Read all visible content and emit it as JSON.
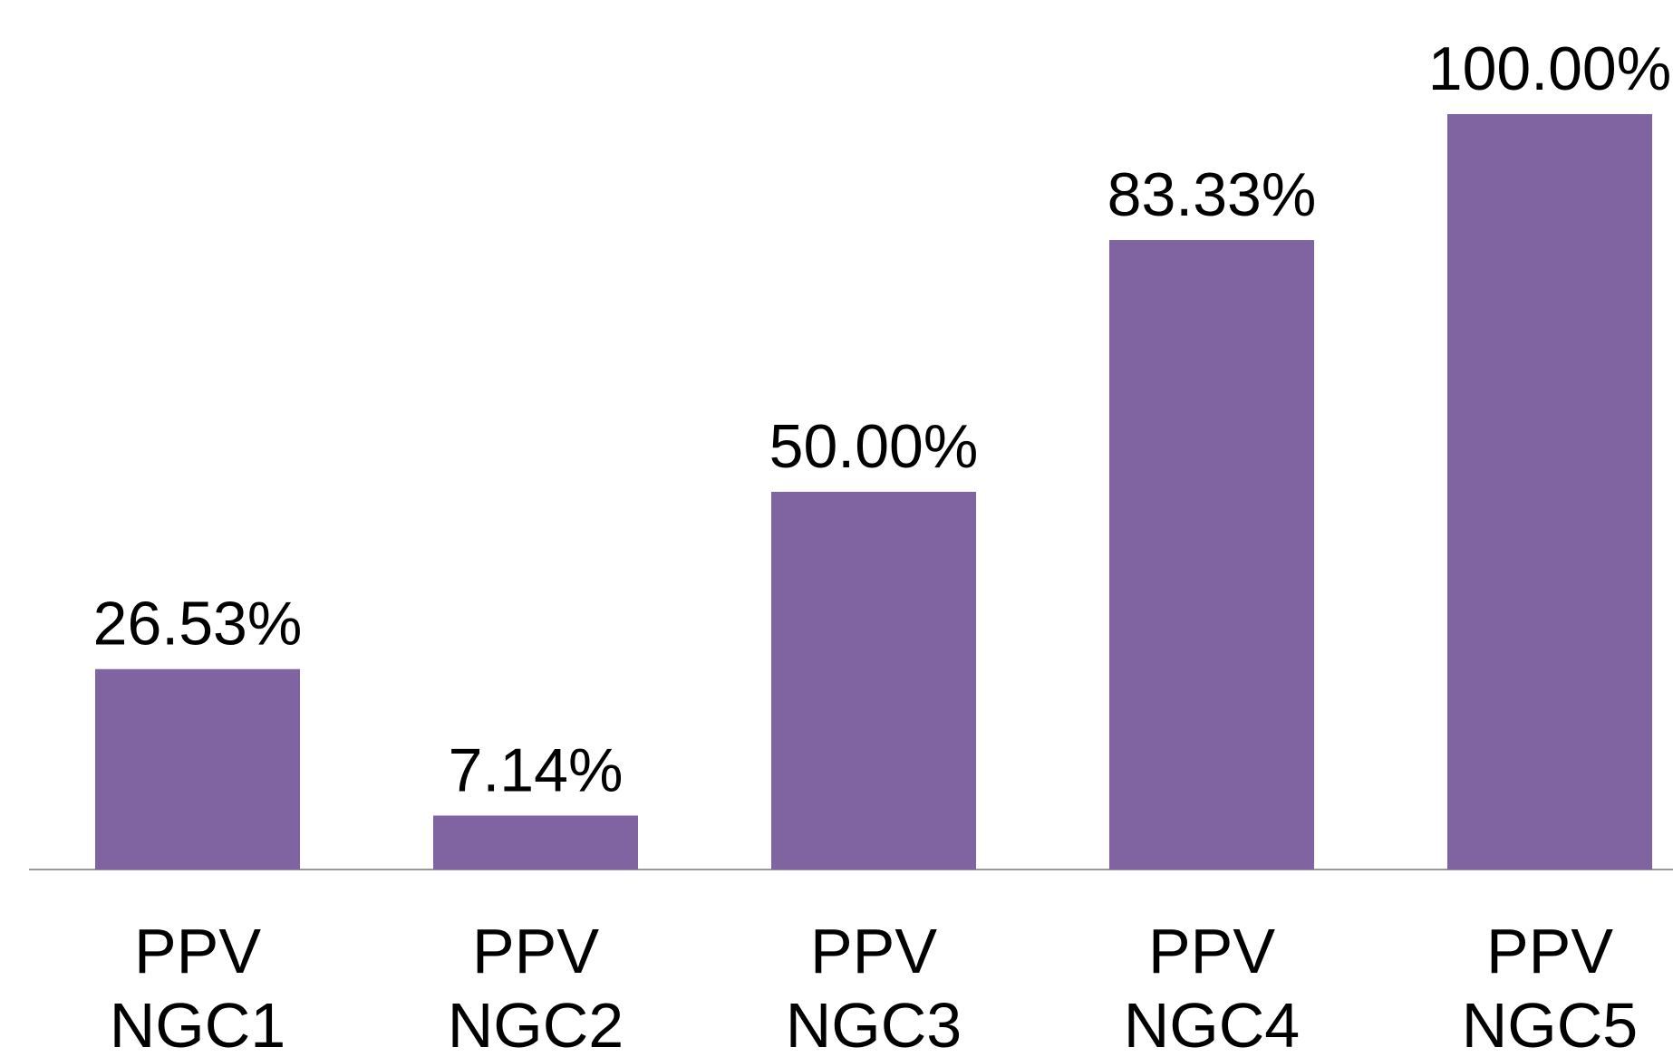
{
  "chart_data": {
    "type": "bar",
    "categories": [
      "PPV NGC1",
      "PPV NGC2",
      "PPV NGC3",
      "PPV NGC4",
      "PPV NGC5"
    ],
    "values": [
      26.53,
      7.14,
      50.0,
      83.33,
      100.0
    ],
    "value_labels": [
      "26.53%",
      "7.14%",
      "50.00%",
      "83.33%",
      "100.00%"
    ],
    "color": "#8064a2"
  }
}
